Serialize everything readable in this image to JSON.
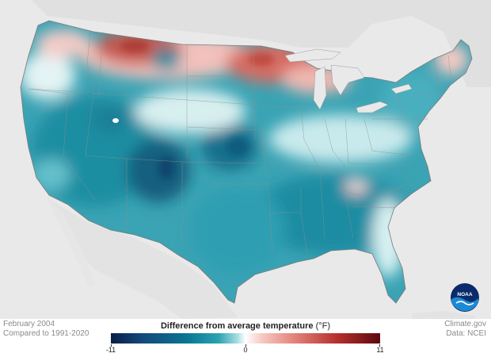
{
  "map": {
    "title": "February 2004",
    "subtitle": "Compared to 1991-2020"
  },
  "legend": {
    "title": "Difference from average temperature",
    "unit": "(°F)",
    "min_label": "-11",
    "mid_label": "0",
    "max_label": "11",
    "scale": {
      "min": -11,
      "max": 11
    },
    "colors": [
      "#0b1d49",
      "#0a7592",
      "#2aa3b2",
      "#ffffff",
      "#e2847b",
      "#b72f2c",
      "#5a0a0f"
    ]
  },
  "credits": {
    "site": "Climate.gov",
    "source": "Data: NCEI"
  },
  "logo": {
    "text": "NOAA"
  },
  "colors": {
    "land_background": "#e9e9e9",
    "us_base": "#3aa3b4",
    "state_borders": "#8a8a8a"
  }
}
